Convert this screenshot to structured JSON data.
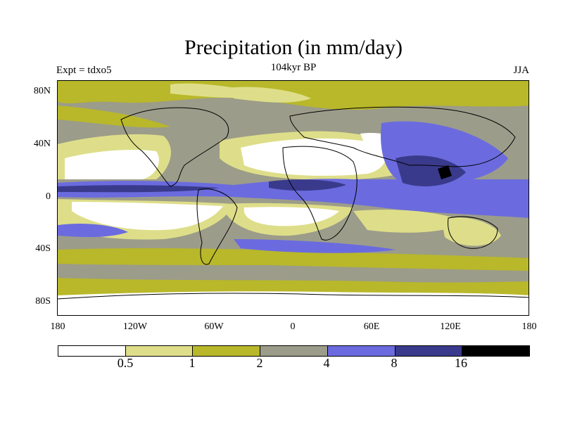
{
  "header": {
    "title": "Precipitation (in mm/day)",
    "experiment": "Expt = tdxo5",
    "period": "104kyr BP",
    "season": "JJA"
  },
  "map": {
    "lat_labels": [
      "80N",
      "40N",
      "0",
      "40S",
      "80S"
    ],
    "lon_labels": [
      "180",
      "120W",
      "60W",
      "0",
      "60E",
      "120E",
      "180"
    ]
  },
  "legend": {
    "levels": [
      "0.5",
      "1",
      "2",
      "4",
      "8",
      "16"
    ],
    "colors": [
      "#ffffff",
      "#dede8a",
      "#b8b82a",
      "#9c9c8a",
      "#6b6bdf",
      "#3a3a8c",
      "#000000"
    ]
  }
}
